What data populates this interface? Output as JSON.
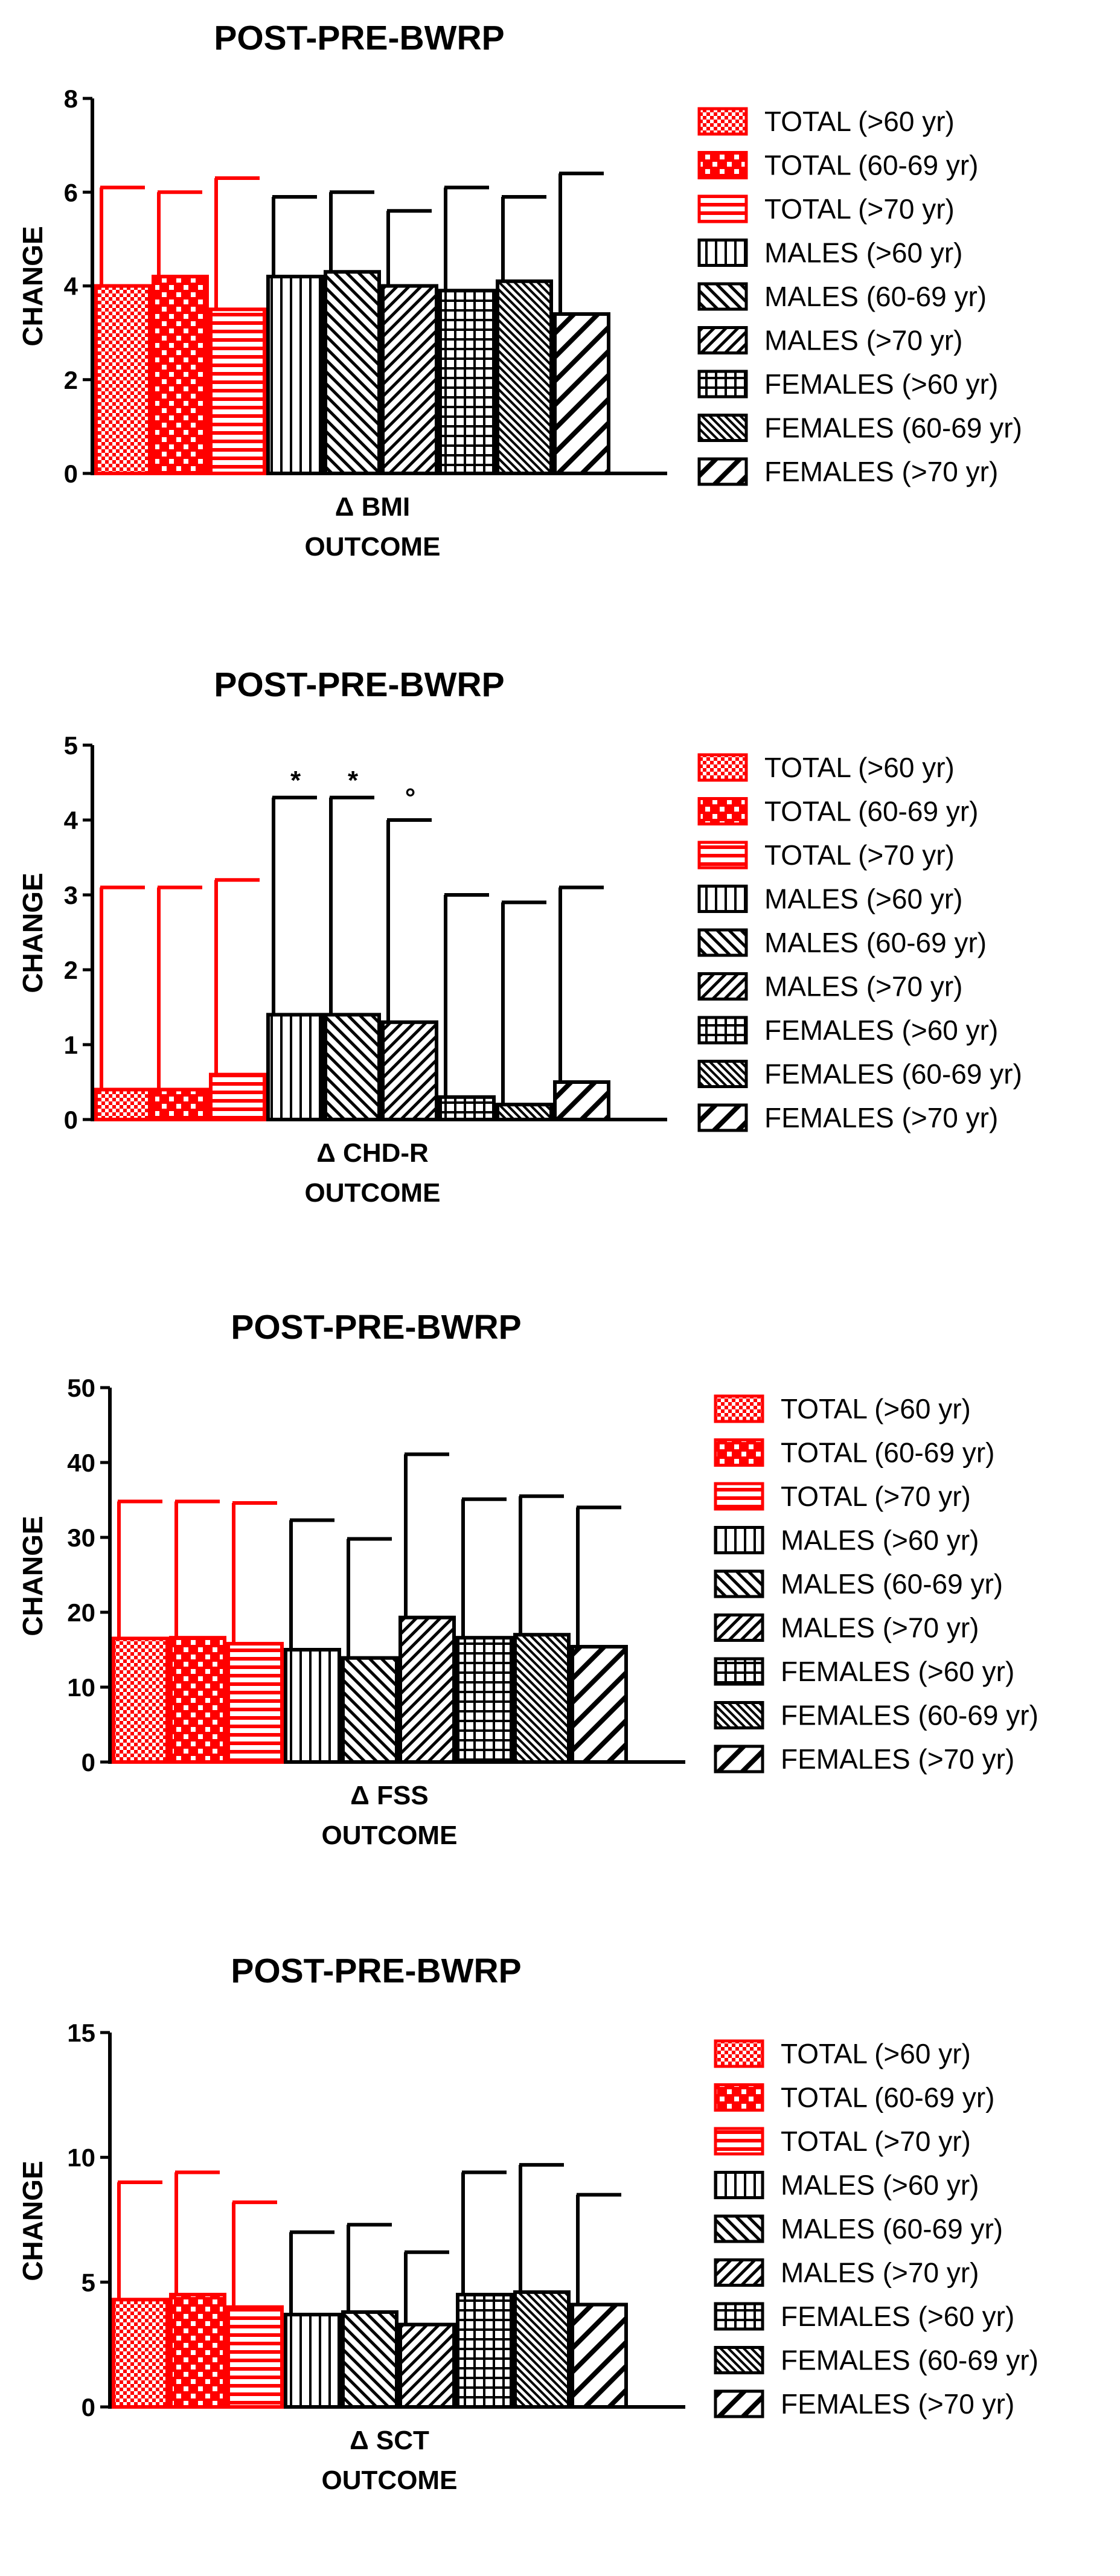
{
  "legend_entries": [
    {
      "label": "TOTAL (>60 yr)",
      "color": "#ff0000",
      "pattern": "checker-fine"
    },
    {
      "label": "TOTAL (60-69 yr)",
      "color": "#ff0000",
      "pattern": "checker-coarse"
    },
    {
      "label": "TOTAL (>70 yr)",
      "color": "#ff0000",
      "pattern": "horizontal"
    },
    {
      "label": "MALES (>60 yr)",
      "color": "#000000",
      "pattern": "vertical"
    },
    {
      "label": "MALES (60-69 yr)",
      "color": "#000000",
      "pattern": "diag-up"
    },
    {
      "label": "MALES (>70 yr)",
      "color": "#000000",
      "pattern": "diag-down"
    },
    {
      "label": "FEMALES (>60 yr)",
      "color": "#000000",
      "pattern": "grid"
    },
    {
      "label": "FEMALES (60-69 yr)",
      "color": "#000000",
      "pattern": "diag-up-dense"
    },
    {
      "label": "FEMALES (>70 yr)",
      "color": "#000000",
      "pattern": "diag-down-wide"
    }
  ],
  "chart_data": [
    {
      "type": "bar",
      "title": "POST-PRE-BWRP",
      "xlabel": "OUTCOME",
      "ylabel": "CHANGE",
      "category": "Δ BMI",
      "ylim": [
        0,
        8
      ],
      "yticks": [
        0,
        2,
        4,
        6,
        8
      ],
      "values": [
        4.0,
        4.2,
        3.5,
        4.2,
        4.3,
        4.0,
        3.9,
        4.1,
        3.4
      ],
      "errors": [
        6.1,
        6.0,
        6.3,
        5.9,
        6.0,
        5.6,
        6.1,
        5.9,
        6.4
      ],
      "annotations": [
        "",
        "",
        "",
        "",
        "",
        "",
        "",
        "",
        ""
      ]
    },
    {
      "type": "bar",
      "title": "POST-PRE-BWRP",
      "xlabel": "OUTCOME",
      "ylabel": "CHANGE",
      "category": "Δ CHD-R",
      "ylim": [
        0,
        5
      ],
      "yticks": [
        0,
        1,
        2,
        3,
        4,
        5
      ],
      "values": [
        0.4,
        0.4,
        0.6,
        1.4,
        1.4,
        1.3,
        0.3,
        0.2,
        0.5
      ],
      "errors": [
        3.1,
        3.1,
        3.2,
        4.3,
        4.3,
        4.0,
        3.0,
        2.9,
        3.1
      ],
      "annotations": [
        "",
        "",
        "",
        "*",
        "*",
        "°",
        "",
        "",
        ""
      ]
    },
    {
      "type": "bar",
      "title": "POST-PRE-BWRP",
      "xlabel": "OUTCOME",
      "ylabel": "CHANGE",
      "category": "Δ FSS",
      "ylim": [
        0,
        50
      ],
      "yticks": [
        0,
        10,
        20,
        30,
        40,
        50
      ],
      "values": [
        16.5,
        16.6,
        15.8,
        15.0,
        13.9,
        19.3,
        16.6,
        17.0,
        15.4
      ],
      "errors": [
        34.8,
        34.8,
        34.6,
        32.3,
        29.8,
        41.1,
        35.1,
        35.5,
        34.0
      ],
      "annotations": [
        "",
        "",
        "",
        "",
        "",
        "",
        "",
        "",
        ""
      ]
    },
    {
      "type": "bar",
      "title": "POST-PRE-BWRP",
      "xlabel": "OUTCOME",
      "ylabel": "CHANGE",
      "category": "Δ SCT",
      "ylim": [
        0,
        15
      ],
      "yticks": [
        0,
        5,
        10,
        15
      ],
      "values": [
        4.3,
        4.5,
        4.0,
        3.7,
        3.8,
        3.3,
        4.5,
        4.6,
        4.1
      ],
      "errors": [
        9.0,
        9.4,
        8.2,
        7.0,
        7.3,
        6.2,
        9.4,
        9.7,
        8.5
      ],
      "annotations": [
        "",
        "",
        "",
        "",
        "",
        "",
        "",
        "",
        ""
      ]
    }
  ]
}
